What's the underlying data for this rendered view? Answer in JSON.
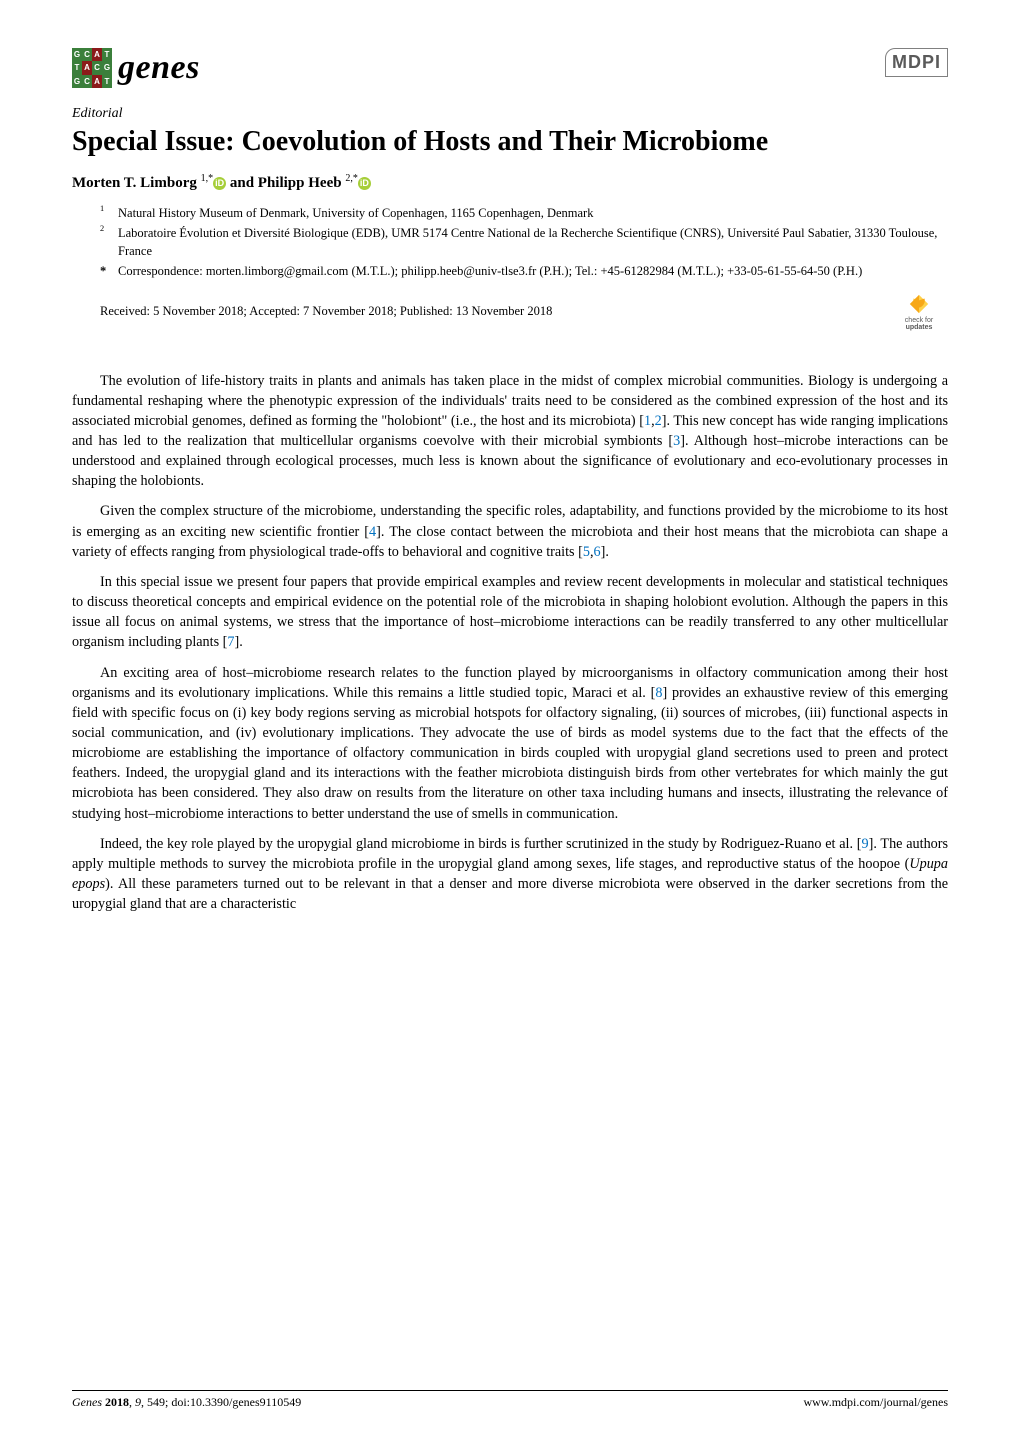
{
  "journal": {
    "name": "genes",
    "logo_colors": {
      "row1": [
        "#3b7f3b",
        "#3b7f3b",
        "#8b1a1a",
        "#3b7f3b"
      ],
      "row2": [
        "#3b7f3b",
        "#8b1a1a",
        "#3b7f3b",
        "#3b7f3b"
      ],
      "row3": [
        "#3b7f3b",
        "#3b7f3b",
        "#8b1a1a",
        "#3b7f3b"
      ]
    },
    "logo_letters": [
      [
        "G",
        "C",
        "A",
        "T"
      ],
      [
        "T",
        "A",
        "C",
        "G"
      ],
      [
        "G",
        "C",
        "A",
        "T"
      ]
    ]
  },
  "publisher_logo": "MDPI",
  "article_type": "Editorial",
  "title": "Special Issue: Coevolution of Hosts and Their Microbiome",
  "authors_html_parts": {
    "a1_name": "Morten T. Limborg ",
    "a1_sup": "1,*",
    "and": " and ",
    "a2_name": "Philipp Heeb ",
    "a2_sup": "2,*"
  },
  "affiliations": [
    {
      "num": "1",
      "text": "Natural History Museum of Denmark, University of Copenhagen, 1165 Copenhagen, Denmark"
    },
    {
      "num": "2",
      "text": "Laboratoire Évolution et Diversité Biologique (EDB), UMR 5174 Centre National de la Recherche Scientifique (CNRS), Université Paul Sabatier, 31330 Toulouse, France"
    }
  ],
  "correspondence": {
    "star": "*",
    "text": "Correspondence: morten.limborg@gmail.com (M.T.L.); philipp.heeb@univ-tlse3.fr (P.H.); Tel.: +45-61282984 (M.T.L.); +33-05-61-55-64-50 (P.H.)"
  },
  "dates": "Received: 5 November 2018; Accepted: 7 November 2018; Published: 13 November 2018",
  "check_updates": {
    "line1": "check for",
    "line2": "updates"
  },
  "paragraphs": [
    "The evolution of life-history traits in plants and animals has taken place in the midst of complex microbial communities. Biology is undergoing a fundamental reshaping where the phenotypic expression of the individuals' traits need to be considered as the combined expression of the host and its associated microbial genomes, defined as forming the \"holobiont\" (i.e., the host and its microbiota) [1,2]. This new concept has wide ranging implications and has led to the realization that multicellular organisms coevolve with their microbial symbionts [3]. Although host–microbe interactions can be understood and explained through ecological processes, much less is known about the significance of evolutionary and eco-evolutionary processes in shaping the holobionts.",
    "Given the complex structure of the microbiome, understanding the specific roles, adaptability, and functions provided by the microbiome to its host is emerging as an exciting new scientific frontier [4]. The close contact between the microbiota and their host means that the microbiota can shape a variety of effects ranging from physiological trade-offs to behavioral and cognitive traits [5,6].",
    "In this special issue we present four papers that provide empirical examples and review recent developments in molecular and statistical techniques to discuss theoretical concepts and empirical evidence on the potential role of the microbiota in shaping holobiont evolution. Although the papers in this issue all focus on animal systems, we stress that the importance of host–microbiome interactions can be readily transferred to any other multicellular organism including plants [7].",
    "An exciting area of host–microbiome research relates to the function played by microorganisms in olfactory communication among their host organisms and its evolutionary implications. While this remains a little studied topic, Maraci et al. [8] provides an exhaustive review of this emerging field with specific focus on (i) key body regions serving as microbial hotspots for olfactory signaling, (ii) sources of microbes, (iii) functional aspects in social communication, and (iv) evolutionary implications. They advocate the use of birds as model systems due to the fact that the effects of the microbiome are establishing the importance of olfactory communication in birds coupled with uropygial gland secretions used to preen and protect feathers. Indeed, the uropygial gland and its interactions with the feather microbiota distinguish birds from other vertebrates for which mainly the gut microbiota has been considered. They also draw on results from the literature on other taxa including humans and insects, illustrating the relevance of studying host–microbiome interactions to better understand the use of smells in communication.",
    "Indeed, the key role played by the uropygial gland microbiome in birds is further scrutinized in the study by Rodriguez-Ruano et al. [9]. The authors apply multiple methods to survey the microbiota profile in the uropygial gland among sexes, life stages, and reproductive status of the hoopoe (Upupa epops). All these parameters turned out to be relevant in that a denser and more diverse microbiota were observed in the darker secretions from the uropygial gland that are a characteristic"
  ],
  "paragraph_refs": {
    "0": [
      [
        "1",
        "1"
      ],
      [
        "2",
        "2"
      ],
      [
        "3",
        "3"
      ]
    ],
    "1": [
      [
        "4",
        "4"
      ],
      [
        "5",
        "5"
      ],
      [
        "6",
        "6"
      ]
    ],
    "2": [
      [
        "7",
        "7"
      ]
    ],
    "3": [
      [
        "8",
        "8"
      ]
    ],
    "4": [
      [
        "9",
        "9"
      ]
    ]
  },
  "footer": {
    "left_journal": "Genes",
    "left_year_vol": "2018",
    "left_vol": "9",
    "left_rest": ", 549; doi:10.3390/genes9110549",
    "right": "www.mdpi.com/journal/genes"
  },
  "colors": {
    "ref_link": "#0070c0",
    "orcid": "#a6ce39",
    "mdpi_border": "#808080",
    "crossref_orange": "#f7a818",
    "crossref_yellow": "#ffd24a"
  }
}
